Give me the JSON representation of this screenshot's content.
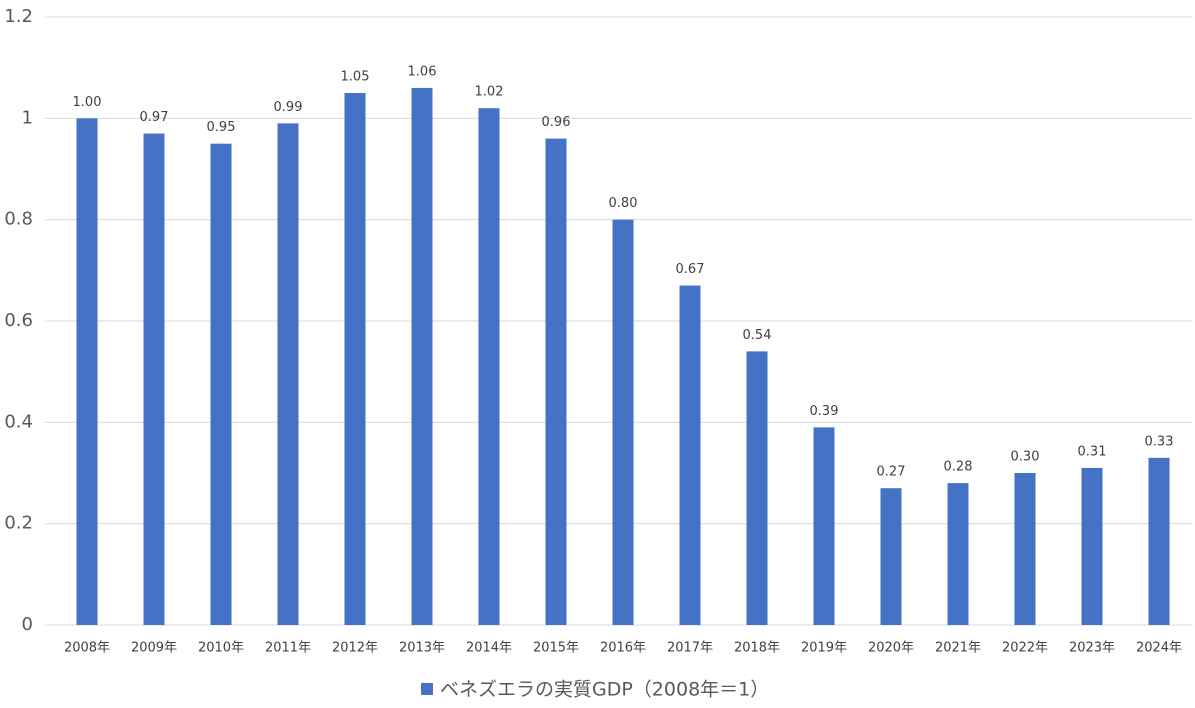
{
  "chart_data": {
    "type": "bar",
    "categories": [
      "2008年",
      "2009年",
      "2010年",
      "2011年",
      "2012年",
      "2013年",
      "2014年",
      "2015年",
      "2016年",
      "2017年",
      "2018年",
      "2019年",
      "2020年",
      "2021年",
      "2022年",
      "2023年",
      "2024年"
    ],
    "series": [
      {
        "name": "ベネズエラの実質GDP（2008年＝1）",
        "color": "#4472c4",
        "values": [
          1.0,
          0.97,
          0.95,
          0.99,
          1.05,
          1.06,
          1.02,
          0.96,
          0.8,
          0.67,
          0.54,
          0.39,
          0.27,
          0.28,
          0.3,
          0.31,
          0.33
        ],
        "value_labels": [
          "1.00",
          "0.97",
          "0.95",
          "0.99",
          "1.05",
          "1.06",
          "1.02",
          "0.96",
          "0.80",
          "0.67",
          "0.54",
          "0.39",
          "0.27",
          "0.28",
          "0.30",
          "0.31",
          "0.33"
        ]
      }
    ],
    "ylim": [
      0,
      1.2
    ],
    "yticks": [
      0,
      0.2,
      0.4,
      0.6,
      0.8,
      1,
      1.2
    ],
    "grid": true,
    "legend": "bottom"
  }
}
